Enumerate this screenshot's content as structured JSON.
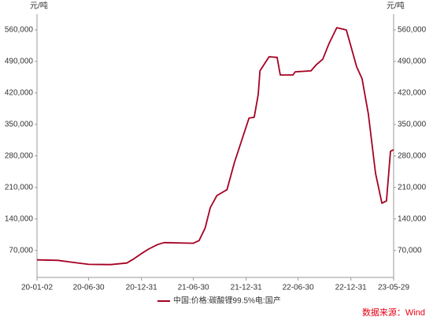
{
  "chart_data": {
    "type": "line",
    "y_label": "元/吨",
    "y2_label": "元/吨",
    "x": [
      "20-01-02",
      "20-03-15",
      "20-05-01",
      "20-06-30",
      "20-09-15",
      "20-11-10",
      "20-12-01",
      "20-12-31",
      "21-01-25",
      "21-02-25",
      "21-03-20",
      "21-06-30",
      "21-07-20",
      "21-08-10",
      "21-08-28",
      "21-09-20",
      "21-10-25",
      "21-11-20",
      "22-01-10",
      "22-01-28",
      "22-02-11",
      "22-02-17",
      "22-03-21",
      "22-04-18",
      "22-04-29",
      "22-06-12",
      "22-06-20",
      "22-08-14",
      "22-09-02",
      "22-09-24",
      "22-10-16",
      "22-11-12",
      "22-12-15",
      "23-01-01",
      "23-01-20",
      "23-02-08",
      "23-03-02",
      "23-03-27",
      "23-04-18",
      "23-05-04",
      "23-05-18",
      "23-05-29"
    ],
    "series": [
      {
        "name": "中国:价格:碳酸锂99.5%电:国产",
        "color": "#a50021",
        "values": [
          49000,
          48000,
          44000,
          39000,
          38500,
          42000,
          50000,
          63000,
          73000,
          83000,
          87500,
          86000,
          92000,
          120000,
          165000,
          192000,
          205000,
          265000,
          364000,
          366000,
          416500,
          469000,
          500500,
          499000,
          460000,
          460000,
          467000,
          469000,
          483000,
          495000,
          530000,
          565000,
          560000,
          521500,
          478000,
          451500,
          373000,
          241500,
          175000,
          180000,
          290500,
          294000
        ]
      }
    ],
    "xlim": [
      "20-01-02",
      "23-05-29"
    ],
    "xticks": [
      "20-01-02",
      "20-06-30",
      "20-12-31",
      "21-06-30",
      "21-12-31",
      "22-06-30",
      "22-12-31",
      "23-05-29"
    ],
    "ylim": [
      10000,
      595000
    ],
    "yticks": [
      {
        "value": 70000,
        "label": "70,000"
      },
      {
        "value": 140000,
        "label": "140,000"
      },
      {
        "value": 210000,
        "label": "210,000"
      },
      {
        "value": 280000,
        "label": "280,000"
      },
      {
        "value": 350000,
        "label": "350,000"
      },
      {
        "value": 420000,
        "label": "420,000"
      },
      {
        "value": 490000,
        "label": "490,000"
      },
      {
        "value": 560000,
        "label": "560,000"
      }
    ],
    "y2lim": [
      10000,
      595000
    ],
    "y2ticks": [
      {
        "value": 70000,
        "label": "70,000"
      },
      {
        "value": 140000,
        "label": "140,000"
      },
      {
        "value": 210000,
        "label": "210,000"
      },
      {
        "value": 280000,
        "label": "280,000"
      },
      {
        "value": 350000,
        "label": "350,000"
      },
      {
        "value": 420000,
        "label": "420,000"
      },
      {
        "value": 490000,
        "label": "490,000"
      },
      {
        "value": 560000,
        "label": "560,000"
      }
    ],
    "legend": "bottom",
    "source": "数据来源：Wind"
  }
}
